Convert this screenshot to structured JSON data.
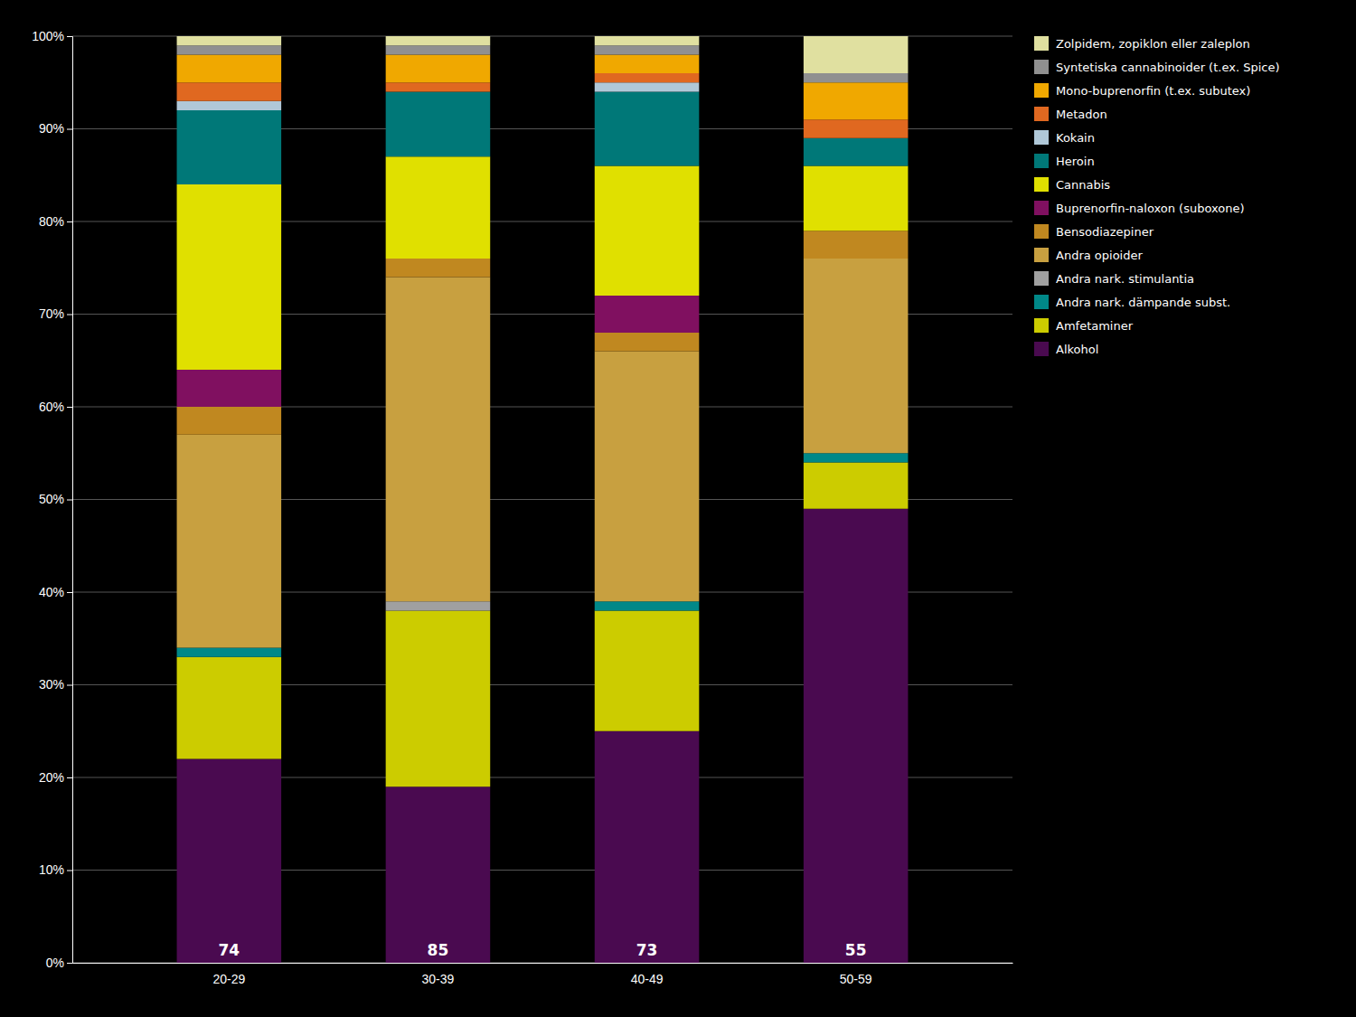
{
  "chart_data": {
    "type": "bar",
    "stacked": true,
    "categories": [
      "20-29",
      "30-39",
      "40-49",
      "50-59"
    ],
    "series": [
      {
        "name": "Alkohol",
        "color": "#4a0a50",
        "values": [
          22,
          19,
          25,
          49
        ]
      },
      {
        "name": "Amfetaminer",
        "color": "#cccc00",
        "values": [
          11,
          19,
          13,
          5
        ]
      },
      {
        "name": "Andra nark. dämpande subst.",
        "color": "#008888",
        "values": [
          1,
          0,
          1,
          1
        ]
      },
      {
        "name": "Andra nark. stimulantia",
        "color": "#a0a0a0",
        "values": [
          0,
          1,
          0,
          0
        ]
      },
      {
        "name": "Andra opioider",
        "color": "#c8a040",
        "values": [
          23,
          35,
          27,
          21
        ]
      },
      {
        "name": "Bensodiazepiner",
        "color": "#c08820",
        "values": [
          3,
          2,
          2,
          3
        ]
      },
      {
        "name": "Buprenorfin-naloxon (suboxone)",
        "color": "#801060",
        "values": [
          4,
          0,
          4,
          0
        ]
      },
      {
        "name": "Cannabis",
        "color": "#e0e000",
        "values": [
          20,
          11,
          14,
          7
        ]
      },
      {
        "name": "Heroin",
        "color": "#007878",
        "values": [
          8,
          7,
          8,
          3
        ]
      },
      {
        "name": "Kokain",
        "color": "#b0c8d8",
        "values": [
          1,
          0,
          1,
          0
        ]
      },
      {
        "name": "Metadon",
        "color": "#e06820",
        "values": [
          2,
          1,
          1,
          2
        ]
      },
      {
        "name": "Mono-buprenorfin (t.ex. subutex)",
        "color": "#f0a800",
        "values": [
          3,
          3,
          2,
          4
        ]
      },
      {
        "name": "Syntetiska cannabinoider (t.ex. Spice)",
        "color": "#909090",
        "values": [
          1,
          1,
          1,
          1
        ]
      },
      {
        "name": "Zolpidem, zopiklon eller zaleplon",
        "color": "#e0e0a0",
        "values": [
          1,
          1,
          1,
          4
        ]
      }
    ],
    "annotations": [
      "74",
      "85",
      "73",
      "55"
    ],
    "ylim": [
      0,
      100
    ],
    "yticks": [
      {
        "value": 0,
        "label": "0%"
      },
      {
        "value": 10,
        "label": "10%"
      },
      {
        "value": 20,
        "label": "20%"
      },
      {
        "value": 30,
        "label": "30%"
      },
      {
        "value": 40,
        "label": "40%"
      },
      {
        "value": 50,
        "label": "50%"
      },
      {
        "value": 60,
        "label": "60%"
      },
      {
        "value": 70,
        "label": "70%"
      },
      {
        "value": 80,
        "label": "80%"
      },
      {
        "value": 90,
        "label": "90%"
      },
      {
        "value": 100,
        "label": "100%"
      }
    ],
    "grid": true,
    "legend": "right"
  }
}
